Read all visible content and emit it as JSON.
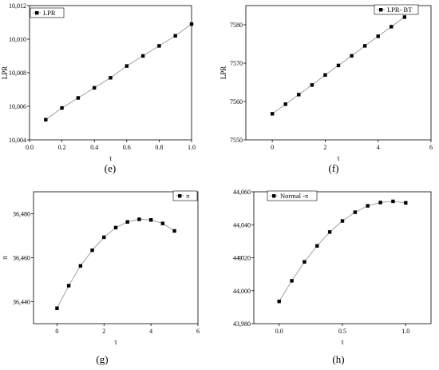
{
  "chart_data": [
    {
      "type": "scatter",
      "panel_label": "(e)",
      "xlabel": "τ",
      "ylabel": "LPR",
      "xlim": [
        0.0,
        1.0
      ],
      "ylim": [
        10004,
        10012
      ],
      "xticks": [
        0.0,
        0.2,
        0.4,
        0.6,
        0.8,
        1.0
      ],
      "xtick_labels": [
        "0.0",
        "0.2",
        "0.4",
        "0.6",
        "0.8",
        "1.0"
      ],
      "yticks": [
        10004,
        10006,
        10008,
        10010,
        10012
      ],
      "ytick_labels": [
        "10,004",
        "10,006",
        "10,008",
        "10,010",
        "10,012"
      ],
      "legend_position": "top-left",
      "series": [
        {
          "name": "LPR",
          "marker": "square",
          "color": "#000000",
          "line_color": "#999999",
          "x": [
            0.1,
            0.2,
            0.3,
            0.4,
            0.5,
            0.6,
            0.7,
            0.8,
            0.9,
            1.0
          ],
          "y": [
            10005.2,
            10005.9,
            10006.5,
            10007.1,
            10007.7,
            10008.4,
            10009.0,
            10009.6,
            10010.2,
            10010.9
          ]
        }
      ]
    },
    {
      "type": "scatter",
      "panel_label": "(f)",
      "xlabel": "τ",
      "ylabel": "LPR",
      "xlim": [
        -1,
        6
      ],
      "ylim": [
        7550,
        7585
      ],
      "xticks": [
        0,
        2,
        4,
        6
      ],
      "xtick_labels": [
        "0",
        "2",
        "4",
        "6"
      ],
      "yticks": [
        7550,
        7560,
        7570,
        7580
      ],
      "ytick_labels": [
        "7550",
        "7560",
        "7570",
        "7580"
      ],
      "legend_position": "top-right",
      "series": [
        {
          "name": "LPR- BT",
          "marker": "square",
          "color": "#000000",
          "line_color": "#999999",
          "x": [
            0,
            0.5,
            1.0,
            1.5,
            2.0,
            2.5,
            3.0,
            3.5,
            4.0,
            4.5,
            5.0
          ],
          "y": [
            7556.8,
            7559.3,
            7561.8,
            7564.3,
            7566.9,
            7569.4,
            7571.9,
            7574.5,
            7577.0,
            7579.5,
            7582.0
          ]
        }
      ]
    },
    {
      "type": "scatter",
      "panel_label": "(g)",
      "xlabel": "τ",
      "ylabel": "π",
      "xlim": [
        -1,
        6
      ],
      "ylim": [
        36430,
        36490
      ],
      "xticks": [
        0,
        2,
        4,
        6
      ],
      "xtick_labels": [
        "0",
        "2",
        "4",
        "6"
      ],
      "yticks": [
        36440,
        36460,
        36480
      ],
      "ytick_labels": [
        "36,440",
        "36,460",
        "36,480"
      ],
      "legend_position": "top-right",
      "series": [
        {
          "name": "π",
          "marker": "square",
          "color": "#000000",
          "line_color": "#999999",
          "x": [
            0,
            0.5,
            1.0,
            1.5,
            2.0,
            2.5,
            3.0,
            3.5,
            4.0,
            4.5,
            5.0
          ],
          "y": [
            36437.0,
            36447.3,
            36456.3,
            36463.4,
            36469.3,
            36473.7,
            36476.3,
            36477.5,
            36477.2,
            36475.6,
            36472.2
          ]
        }
      ]
    },
    {
      "type": "scatter",
      "panel_label": "(h)",
      "xlabel": "τ",
      "ylabel": "π",
      "xlim": [
        -0.2,
        1.2
      ],
      "ylim": [
        43980,
        44060
      ],
      "xticks": [
        0.0,
        0.5,
        1.0
      ],
      "xtick_labels": [
        "0.0",
        "0.5",
        "1.0"
      ],
      "yticks": [
        43980,
        44000,
        44020,
        44040,
        44060
      ],
      "ytick_labels": [
        "43,980",
        "44,000",
        "44,020",
        "44,040",
        "44,060"
      ],
      "legend_position": "top-left",
      "series": [
        {
          "name": "Normal -π",
          "marker": "square",
          "color": "#000000",
          "line_color": "#999999",
          "x": [
            0.0,
            0.1,
            0.2,
            0.3,
            0.4,
            0.5,
            0.6,
            0.7,
            0.8,
            0.9,
            1.0
          ],
          "y": [
            43993.5,
            44006.0,
            44017.5,
            44027.2,
            44035.6,
            44042.3,
            44047.6,
            44051.5,
            44053.5,
            44054.2,
            44053.3
          ]
        }
      ]
    }
  ]
}
